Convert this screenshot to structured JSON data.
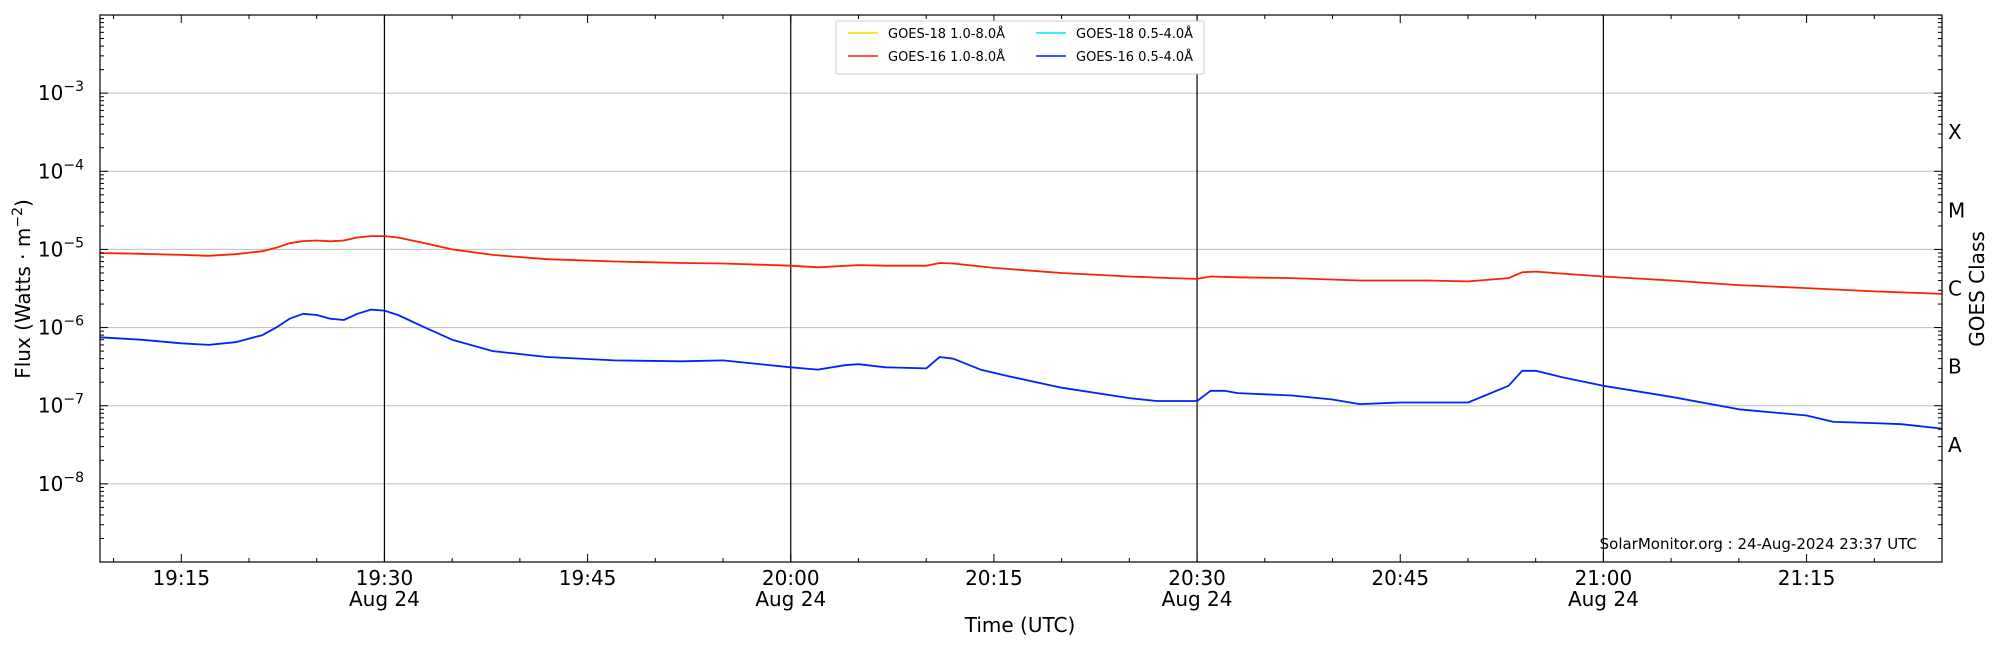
{
  "chart_data": {
    "type": "line",
    "xlabel": "Time (UTC)",
    "ylabel": "Flux (Watts · m",
    "ylabel_sup": "−2",
    "ylabel_close": ")",
    "y2label": "GOES Class",
    "yscale": "log",
    "ylim": [
      1e-09,
      0.01
    ],
    "xlim": [
      "19:09",
      "21:25"
    ],
    "grid": "horizontal",
    "legend_placement": "top-center",
    "x_ticks": [
      {
        "time": "19:15",
        "label": "19:15",
        "sublabel": ""
      },
      {
        "time": "19:30",
        "label": "19:30",
        "sublabel": "Aug 24"
      },
      {
        "time": "19:45",
        "label": "19:45",
        "sublabel": ""
      },
      {
        "time": "20:00",
        "label": "20:00",
        "sublabel": "Aug 24"
      },
      {
        "time": "20:15",
        "label": "20:15",
        "sublabel": ""
      },
      {
        "time": "20:30",
        "label": "20:30",
        "sublabel": "Aug 24"
      },
      {
        "time": "20:45",
        "label": "20:45",
        "sublabel": ""
      },
      {
        "time": "21:00",
        "label": "21:00",
        "sublabel": "Aug 24"
      },
      {
        "time": "21:15",
        "label": "21:15",
        "sublabel": ""
      }
    ],
    "y_ticks": [
      {
        "exp": -8,
        "base": "10",
        "sup": "−8"
      },
      {
        "exp": -7,
        "base": "10",
        "sup": "−7"
      },
      {
        "exp": -6,
        "base": "10",
        "sup": "−6"
      },
      {
        "exp": -5,
        "base": "10",
        "sup": "−5"
      },
      {
        "exp": -4,
        "base": "10",
        "sup": "−4"
      },
      {
        "exp": -3,
        "base": "10",
        "sup": "−3"
      }
    ],
    "goes_classes": [
      {
        "label": "A",
        "exp": -7.5
      },
      {
        "label": "B",
        "exp": -6.5
      },
      {
        "label": "C",
        "exp": -5.5
      },
      {
        "label": "M",
        "exp": -4.5
      },
      {
        "label": "X",
        "exp": -3.5
      }
    ],
    "day_markers": [
      "19:30",
      "20:00",
      "20:30",
      "21:00"
    ],
    "legend": [
      {
        "name": "GOES-18 1.0-8.0Å",
        "color": "#ffd700"
      },
      {
        "name": "GOES-18 0.5-4.0Å",
        "color": "#00e5ee"
      },
      {
        "name": "GOES-16 1.0-8.0Å",
        "color": "#ff2000"
      },
      {
        "name": "GOES-16 0.5-4.0Å",
        "color": "#0022ff"
      }
    ],
    "series": [
      {
        "name": "GOES-16 1.0-8.0Å",
        "color": "#ff2000",
        "points": [
          [
            "19:09",
            9e-06
          ],
          [
            "19:12",
            8.8e-06
          ],
          [
            "19:15",
            8.5e-06
          ],
          [
            "19:17",
            8.3e-06
          ],
          [
            "19:19",
            8.7e-06
          ],
          [
            "19:21",
            9.5e-06
          ],
          [
            "19:22",
            1.05e-05
          ],
          [
            "19:23",
            1.2e-05
          ],
          [
            "19:24",
            1.28e-05
          ],
          [
            "19:25",
            1.3e-05
          ],
          [
            "19:26",
            1.27e-05
          ],
          [
            "19:27",
            1.3e-05
          ],
          [
            "19:28",
            1.42e-05
          ],
          [
            "19:29",
            1.48e-05
          ],
          [
            "19:30",
            1.48e-05
          ],
          [
            "19:31",
            1.42e-05
          ],
          [
            "19:33",
            1.2e-05
          ],
          [
            "19:35",
            1e-05
          ],
          [
            "19:38",
            8.5e-06
          ],
          [
            "19:42",
            7.5e-06
          ],
          [
            "19:47",
            7e-06
          ],
          [
            "19:52",
            6.7e-06
          ],
          [
            "19:55",
            6.6e-06
          ],
          [
            "20:00",
            6.2e-06
          ],
          [
            "20:02",
            5.9e-06
          ],
          [
            "20:05",
            6.3e-06
          ],
          [
            "20:07",
            6.2e-06
          ],
          [
            "20:10",
            6.2e-06
          ],
          [
            "20:11",
            6.7e-06
          ],
          [
            "20:12",
            6.6e-06
          ],
          [
            "20:15",
            5.8e-06
          ],
          [
            "20:20",
            5e-06
          ],
          [
            "20:25",
            4.5e-06
          ],
          [
            "20:28",
            4.3e-06
          ],
          [
            "20:30",
            4.2e-06
          ],
          [
            "20:31",
            4.5e-06
          ],
          [
            "20:33",
            4.4e-06
          ],
          [
            "20:37",
            4.3e-06
          ],
          [
            "20:42",
            4e-06
          ],
          [
            "20:47",
            4e-06
          ],
          [
            "20:50",
            3.9e-06
          ],
          [
            "20:53",
            4.3e-06
          ],
          [
            "20:54",
            5.1e-06
          ],
          [
            "20:55",
            5.2e-06
          ],
          [
            "20:57",
            4.9e-06
          ],
          [
            "21:00",
            4.5e-06
          ],
          [
            "21:05",
            4e-06
          ],
          [
            "21:10",
            3.5e-06
          ],
          [
            "21:15",
            3.2e-06
          ],
          [
            "21:20",
            2.9e-06
          ],
          [
            "21:25",
            2.7e-06
          ]
        ]
      },
      {
        "name": "GOES-16 0.5-4.0Å",
        "color": "#0022ff",
        "points": [
          [
            "19:09",
            7.5e-07
          ],
          [
            "19:12",
            7e-07
          ],
          [
            "19:15",
            6.3e-07
          ],
          [
            "19:17",
            6e-07
          ],
          [
            "19:19",
            6.5e-07
          ],
          [
            "19:21",
            8e-07
          ],
          [
            "19:22",
            1e-06
          ],
          [
            "19:23",
            1.3e-06
          ],
          [
            "19:24",
            1.5e-06
          ],
          [
            "19:25",
            1.45e-06
          ],
          [
            "19:26",
            1.3e-06
          ],
          [
            "19:27",
            1.25e-06
          ],
          [
            "19:28",
            1.5e-06
          ],
          [
            "19:29",
            1.7e-06
          ],
          [
            "19:30",
            1.65e-06
          ],
          [
            "19:31",
            1.45e-06
          ],
          [
            "19:33",
            1e-06
          ],
          [
            "19:35",
            7e-07
          ],
          [
            "19:38",
            5e-07
          ],
          [
            "19:42",
            4.2e-07
          ],
          [
            "19:47",
            3.8e-07
          ],
          [
            "19:52",
            3.7e-07
          ],
          [
            "19:55",
            3.8e-07
          ],
          [
            "20:00",
            3.1e-07
          ],
          [
            "20:02",
            2.9e-07
          ],
          [
            "20:04",
            3.3e-07
          ],
          [
            "20:05",
            3.4e-07
          ],
          [
            "20:07",
            3.1e-07
          ],
          [
            "20:10",
            3e-07
          ],
          [
            "20:11",
            4.2e-07
          ],
          [
            "20:12",
            4e-07
          ],
          [
            "20:14",
            2.9e-07
          ],
          [
            "20:16",
            2.4e-07
          ],
          [
            "20:20",
            1.7e-07
          ],
          [
            "20:25",
            1.25e-07
          ],
          [
            "20:27",
            1.15e-07
          ],
          [
            "20:30",
            1.15e-07
          ],
          [
            "20:31",
            1.55e-07
          ],
          [
            "20:32",
            1.55e-07
          ],
          [
            "20:33",
            1.45e-07
          ],
          [
            "20:37",
            1.35e-07
          ],
          [
            "20:40",
            1.2e-07
          ],
          [
            "20:42",
            1.05e-07
          ],
          [
            "20:45",
            1.1e-07
          ],
          [
            "20:48",
            1.1e-07
          ],
          [
            "20:50",
            1.1e-07
          ],
          [
            "20:53",
            1.8e-07
          ],
          [
            "20:54",
            2.8e-07
          ],
          [
            "20:55",
            2.8e-07
          ],
          [
            "20:57",
            2.3e-07
          ],
          [
            "21:00",
            1.8e-07
          ],
          [
            "21:05",
            1.3e-07
          ],
          [
            "21:10",
            9e-08
          ],
          [
            "21:15",
            7.5e-08
          ],
          [
            "21:17",
            6.2e-08
          ],
          [
            "21:20",
            6e-08
          ],
          [
            "21:22",
            5.8e-08
          ],
          [
            "21:25",
            5.1e-08
          ]
        ]
      }
    ],
    "credit": "SolarMonitor.org : 24-Aug-2024 23:37 UTC"
  }
}
